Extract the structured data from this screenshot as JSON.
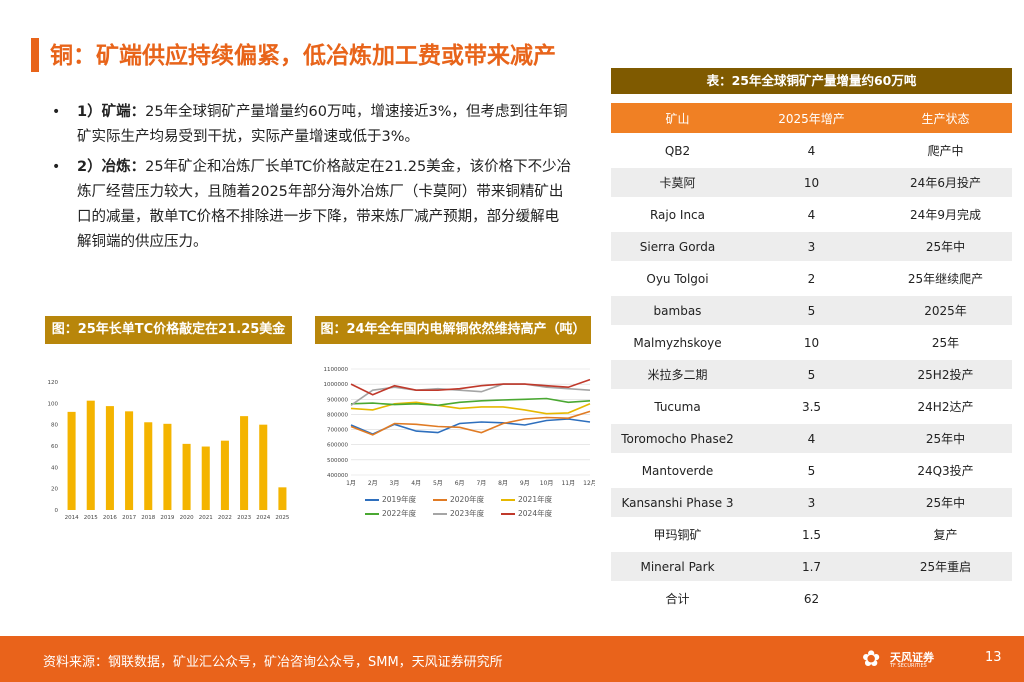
{
  "page": {
    "title": "铜：矿端供应持续偏紧，低冶炼加工费或带来减产",
    "number": "13"
  },
  "bullets": [
    {
      "marker": "•",
      "label": "1）矿端：",
      "text": "25年全球铜矿产量增量约60万吨，增速接近3%，但考虑到往年铜矿实际生产均易受到干扰，实际产量增速或低于3%。"
    },
    {
      "marker": "•",
      "label": "2）冶炼：",
      "text": "25年矿企和冶炼厂长单TC价格敲定在21.25美金，该价格下不少冶炼厂经营压力较大，且随着2025年部分海外冶炼厂（卡莫阿）带来铜精矿出口的减量，散单TC价格不排除进一步下降，带来炼厂减产预期，部分缓解电解铜端的供应压力。"
    }
  ],
  "figures": {
    "bar_title": "图：25年长单TC价格敲定在21.25美金",
    "line_title": "图：24年全年国内电解铜依然维持高产（吨）"
  },
  "chart_data": [
    {
      "type": "bar",
      "title": "图：25年长单TC价格敲定在21.25美金",
      "categories": [
        "2014",
        "2015",
        "2016",
        "2017",
        "2018",
        "2019",
        "2020",
        "2021",
        "2022",
        "2023",
        "2024",
        "2025"
      ],
      "values": [
        92,
        102.5,
        97.4,
        92.5,
        82.25,
        80.8,
        62,
        59.5,
        65,
        88,
        80,
        21.25
      ],
      "ylim": [
        0,
        120
      ],
      "yticks": [
        "0",
        "20",
        "40",
        "60",
        "80",
        "100",
        "120"
      ],
      "color": "#f4b400",
      "grid": false
    },
    {
      "type": "line",
      "title": "图：24年全年国内电解铜依然维持高产（吨）",
      "categories": [
        "1月",
        "2月",
        "3月",
        "4月",
        "5月",
        "6月",
        "7月",
        "8月",
        "9月",
        "10月",
        "11月",
        "12月"
      ],
      "ylim": [
        400000,
        1100000
      ],
      "yticks": [
        "400000",
        "500000",
        "600000",
        "700000",
        "800000",
        "900000",
        "1000000",
        "1100000"
      ],
      "series": [
        {
          "name": "2019年度",
          "color": "#2e6fbd",
          "values": [
            730000,
            670000,
            735000,
            690000,
            680000,
            740000,
            750000,
            745000,
            730000,
            760000,
            770000,
            750000
          ]
        },
        {
          "name": "2020年度",
          "color": "#e07b24",
          "values": [
            720000,
            665000,
            740000,
            735000,
            720000,
            715000,
            680000,
            740000,
            770000,
            780000,
            775000,
            820000
          ]
        },
        {
          "name": "2021年度",
          "color": "#e6b800",
          "values": [
            840000,
            830000,
            870000,
            880000,
            860000,
            840000,
            850000,
            850000,
            830000,
            805000,
            810000,
            870000
          ]
        },
        {
          "name": "2022年度",
          "color": "#4aa832",
          "values": [
            870000,
            875000,
            865000,
            870000,
            860000,
            880000,
            890000,
            895000,
            900000,
            905000,
            880000,
            890000
          ]
        },
        {
          "name": "2023年度",
          "color": "#a5a5a5",
          "values": [
            860000,
            960000,
            980000,
            960000,
            970000,
            960000,
            950000,
            1000000,
            1000000,
            980000,
            970000,
            960000
          ]
        },
        {
          "name": "2024年度",
          "color": "#c0392b",
          "values": [
            1000000,
            930000,
            990000,
            960000,
            960000,
            970000,
            990000,
            1000000,
            1000000,
            990000,
            980000,
            1030000
          ]
        }
      ],
      "grid": true,
      "legend": "bottom"
    }
  ],
  "table": {
    "title": "表：25年全球铜矿产量增量约60万吨",
    "headers": [
      "矿山",
      "2025年增产",
      "生产状态"
    ],
    "rows": [
      [
        "QB2",
        "4",
        "爬产中"
      ],
      [
        "卡莫阿",
        "10",
        "24年6月投产"
      ],
      [
        "Rajo Inca",
        "4",
        "24年9月完成"
      ],
      [
        "Sierra Gorda",
        "3",
        "25年中"
      ],
      [
        "Oyu Tolgoi",
        "2",
        "25年继续爬产"
      ],
      [
        "bambas",
        "5",
        "2025年"
      ],
      [
        "Malmyzhskoye",
        "10",
        "25年"
      ],
      [
        "米拉多二期",
        "5",
        "25H2投产"
      ],
      [
        "Tucuma",
        "3.5",
        "24H2达产"
      ],
      [
        "Toromocho Phase2",
        "4",
        "25年中"
      ],
      [
        "Mantoverde",
        "5",
        "24Q3投产"
      ],
      [
        "Kansanshi Phase 3",
        "3",
        "25年中"
      ],
      [
        "甲玛铜矿",
        "1.5",
        "复产"
      ],
      [
        "Mineral Park",
        "1.7",
        "25年重启"
      ],
      [
        "合计",
        "62",
        ""
      ]
    ]
  },
  "footer": {
    "source": "资料来源：钢联数据，矿业汇公众号，矿冶咨询公众号，SMM，天风证券研究所",
    "logo_name": "天风证券",
    "logo_sub": "TF SECURITIES",
    "accent": "#e9631b"
  }
}
